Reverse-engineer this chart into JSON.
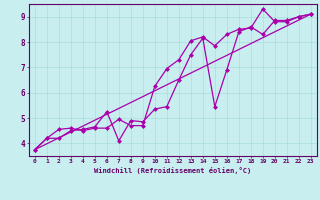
{
  "xlabel": "Windchill (Refroidissement éolien,°C)",
  "bg_color": "#c8eef0",
  "line_color": "#aa00aa",
  "grid_color": "#aadddd",
  "axis_color": "#660066",
  "xlim": [
    -0.5,
    23.5
  ],
  "ylim": [
    3.5,
    9.5
  ],
  "xticks": [
    0,
    1,
    2,
    3,
    4,
    5,
    6,
    7,
    8,
    9,
    10,
    11,
    12,
    13,
    14,
    15,
    16,
    17,
    18,
    19,
    20,
    21,
    22,
    23
  ],
  "yticks": [
    4,
    5,
    6,
    7,
    8,
    9
  ],
  "line1_x": [
    0,
    1,
    2,
    3,
    4,
    5,
    6,
    7,
    8,
    9,
    10,
    11,
    12,
    13,
    14,
    15,
    16,
    17,
    18,
    19,
    20,
    21,
    22,
    23
  ],
  "line1_y": [
    3.75,
    4.2,
    4.2,
    4.5,
    4.55,
    4.65,
    5.25,
    4.1,
    4.9,
    4.85,
    5.35,
    5.45,
    6.5,
    7.5,
    8.15,
    5.45,
    6.9,
    8.4,
    8.6,
    8.3,
    8.85,
    8.85,
    9.0,
    9.1
  ],
  "line2_x": [
    0,
    1,
    2,
    3,
    4,
    5,
    6,
    7,
    8,
    9,
    10,
    11,
    12,
    13,
    14,
    15,
    16,
    17,
    18,
    19,
    20,
    21,
    22,
    23
  ],
  "line2_y": [
    3.75,
    4.2,
    4.55,
    4.6,
    4.5,
    4.6,
    4.6,
    4.95,
    4.7,
    4.7,
    6.25,
    6.95,
    7.3,
    8.05,
    8.2,
    7.85,
    8.3,
    8.5,
    8.55,
    9.3,
    8.8,
    8.8,
    9.0,
    9.1
  ],
  "line3_x": [
    0,
    23
  ],
  "line3_y": [
    3.75,
    9.1
  ],
  "markersize": 2.5,
  "linewidth": 0.9
}
